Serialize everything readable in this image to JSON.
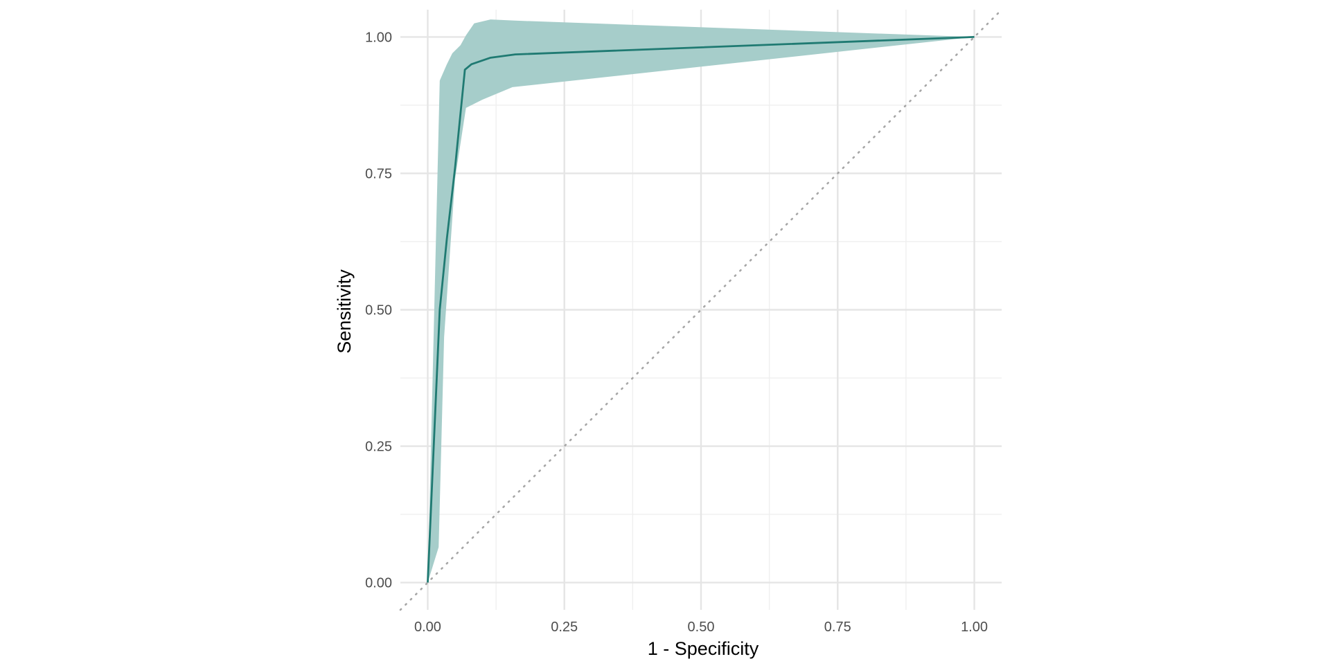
{
  "chart_data": {
    "type": "line",
    "title": "",
    "xlabel": "1 - Specificity",
    "ylabel": "Sensitivity",
    "xlim": [
      -0.05,
      1.05
    ],
    "ylim": [
      -0.05,
      1.05
    ],
    "x_ticks": [
      0,
      0.25,
      0.5,
      0.75,
      1
    ],
    "x_tick_labels": [
      "0.00",
      "0.25",
      "0.50",
      "0.75",
      "1.00"
    ],
    "y_ticks": [
      0,
      0.25,
      0.5,
      0.75,
      1
    ],
    "y_tick_labels": [
      "0.00",
      "0.25",
      "0.50",
      "0.75",
      "1.00"
    ],
    "grid": true,
    "legend": "none",
    "colors": {
      "line": "#1f7a72",
      "band": "#a6cdca",
      "reference": "#a6a6a6"
    },
    "reference_line": {
      "x": [
        -0.05,
        1.05
      ],
      "y": [
        -0.05,
        1.05
      ],
      "style": "dotted"
    },
    "series": [
      {
        "x": [
          0.0,
          0.022,
          0.035,
          0.05,
          0.068,
          0.08,
          0.115,
          0.16,
          1.0
        ],
        "y": [
          0.0,
          0.5,
          0.63,
          0.76,
          0.94,
          0.95,
          0.962,
          0.968,
          1.0
        ]
      }
    ],
    "band": {
      "upper": {
        "x": [
          0.0,
          0.022,
          0.035,
          0.045,
          0.06,
          0.07,
          0.085,
          0.115,
          0.16,
          1.0
        ],
        "y": [
          0.0,
          0.92,
          0.95,
          0.97,
          0.985,
          1.003,
          1.025,
          1.032,
          1.03,
          1.0
        ]
      },
      "lower": {
        "x": [
          0.0,
          0.02,
          0.03,
          0.05,
          0.07,
          0.1,
          0.155,
          1.0
        ],
        "y": [
          0.0,
          0.065,
          0.45,
          0.74,
          0.87,
          0.885,
          0.908,
          1.0
        ]
      }
    }
  }
}
